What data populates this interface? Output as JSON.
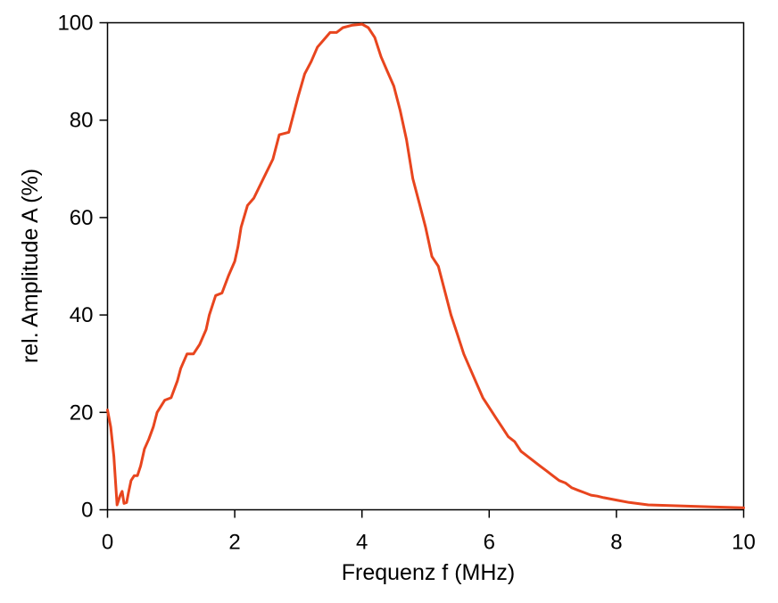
{
  "chart_data": {
    "type": "line",
    "title": "",
    "xlabel": "Frequenz f (MHz)",
    "ylabel": "rel. Amplitude  A (%)",
    "xlim": [
      0,
      10
    ],
    "ylim": [
      0,
      100
    ],
    "xticks": [
      0,
      2,
      4,
      6,
      8,
      10
    ],
    "yticks": [
      0,
      20,
      40,
      60,
      80,
      100
    ],
    "grid": false,
    "legend": "none",
    "line_color": "#e8451e",
    "series": [
      {
        "x": [
          0,
          0.05,
          0.1,
          0.15,
          0.2,
          0.23,
          0.26,
          0.3,
          0.33,
          0.37,
          0.42,
          0.47,
          0.52,
          0.58,
          0.65,
          0.72,
          0.78,
          0.9,
          1.0,
          1.1,
          1.15,
          1.25,
          1.35,
          1.45,
          1.55,
          1.6,
          1.7,
          1.8,
          1.9,
          2.0,
          2.05,
          2.1,
          2.2,
          2.3,
          2.45,
          2.6,
          2.7,
          2.85,
          3.0,
          3.1,
          3.2,
          3.3,
          3.4,
          3.5,
          3.6,
          3.7,
          3.85,
          4.0,
          4.1,
          4.2,
          4.3,
          4.4,
          4.5,
          4.6,
          4.7,
          4.8,
          4.9,
          5.0,
          5.1,
          5.2,
          5.3,
          5.4,
          5.5,
          5.6,
          5.7,
          5.8,
          5.9,
          6.0,
          6.1,
          6.2,
          6.3,
          6.4,
          6.5,
          6.6,
          6.7,
          6.8,
          6.9,
          7.0,
          7.1,
          7.2,
          7.3,
          7.4,
          7.5,
          7.6,
          7.7,
          7.8,
          8.0,
          8.2,
          8.5,
          9.0,
          9.5,
          10.0
        ],
        "values": [
          20.5,
          17,
          11,
          1,
          3,
          3.8,
          1.3,
          1.5,
          3.5,
          6,
          7,
          7,
          9,
          12.5,
          14.5,
          17,
          20,
          22.5,
          23,
          26.5,
          29,
          32,
          32,
          34,
          37,
          40,
          44,
          44.5,
          48,
          51,
          54,
          58,
          62.5,
          64,
          68,
          72,
          77,
          77.5,
          85,
          89.5,
          92,
          95,
          96.5,
          98,
          98,
          99,
          99.5,
          99.7,
          99,
          97,
          93,
          90,
          87,
          82,
          76,
          68,
          63,
          58,
          52,
          50,
          45,
          40,
          36,
          32,
          29,
          26,
          23,
          21,
          19,
          17,
          15,
          14,
          12,
          11,
          10,
          9,
          8,
          7,
          6,
          5.5,
          4.5,
          4,
          3.5,
          3,
          2.8,
          2.5,
          2,
          1.5,
          1,
          0.8,
          0.6,
          0.4
        ]
      }
    ]
  }
}
